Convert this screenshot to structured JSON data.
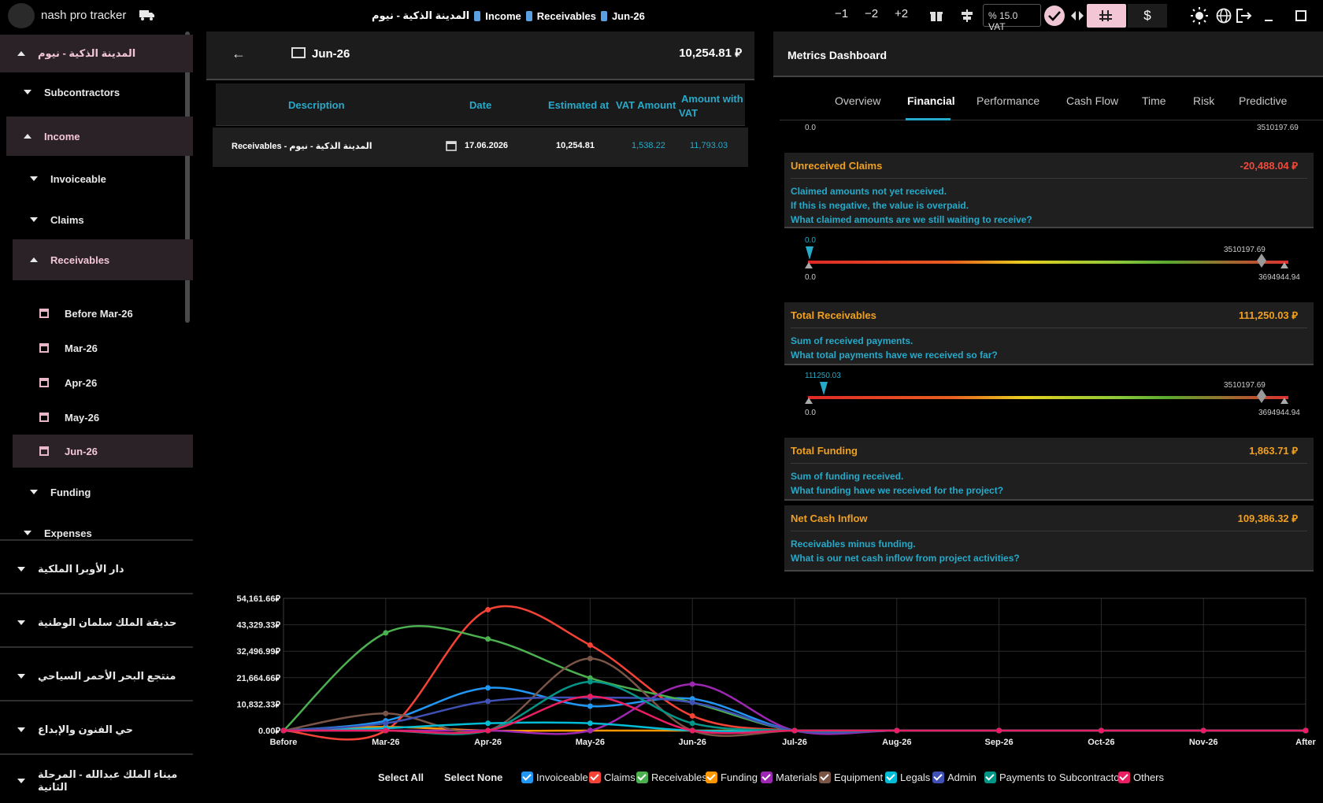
{
  "app": {
    "title": "nash pro tracker"
  },
  "breadcrumb": [
    "المدينة الذكية - نيوم",
    "Income",
    "Receivables",
    "Jun-26"
  ],
  "toolbar": {
    "minus1": "−1",
    "minus2": "−2",
    "plus2": "+2",
    "vat": "% 15.0  VAT",
    "dollar": "$"
  },
  "sidebar": {
    "project": "المدينة الذكية - نيوم",
    "items": [
      {
        "label": "Subcontractors"
      },
      {
        "label": "Income"
      },
      {
        "label": "Invoiceable"
      },
      {
        "label": "Claims"
      },
      {
        "label": "Receivables"
      },
      {
        "label": "Before Mar-26"
      },
      {
        "label": "Mar-26"
      },
      {
        "label": "Apr-26"
      },
      {
        "label": "May-26"
      },
      {
        "label": "Jun-26"
      },
      {
        "label": "Funding"
      },
      {
        "label": "Expenses"
      }
    ],
    "projects": [
      "دار الأوبرا الملكية",
      "حديقة الملك سلمان الوطنية",
      "منتجع البحر الأحمر السياحي",
      "حي الفنون والإبداع",
      "ميناء الملك عبدالله - المرحلة الثانية"
    ]
  },
  "period": {
    "title": "Jun-26",
    "total": "10,254.81 ⃁"
  },
  "table": {
    "headers": [
      "Description",
      "Date",
      "Estimated at",
      "VAT Amount",
      "Amount with",
      "VAT"
    ],
    "row": {
      "description": "Receivables - المدينة الذكية - نيوم",
      "date": "17.06.2026",
      "estimated": "10,254.81",
      "vat": "1,538.22",
      "amount": "11,793.03"
    }
  },
  "metrics": {
    "title": "Metrics Dashboard",
    "tabs": [
      "Overview",
      "Financial",
      "Performance",
      "Cash Flow",
      "Time",
      "Risk",
      "Predictive"
    ],
    "top_labels": {
      "left": "0.0",
      "right": "3510197.69"
    },
    "cards": [
      {
        "title": "Unreceived Claims",
        "value": "-20,488.04 ⃁",
        "lines": [
          "Claimed amounts not yet received.",
          "If this is negative, the value is overpaid.",
          "What claimed amounts are we still waiting to receive?"
        ],
        "gauge": {
          "marker": "0.0",
          "mid": "3510197.69",
          "min": "0.0",
          "max": "3694944.94"
        }
      },
      {
        "title": "Total Receivables",
        "value": "111,250.03 ⃁",
        "lines": [
          "Sum of received payments.",
          "What total payments have we received so far?"
        ],
        "gauge": {
          "marker": "111250.03",
          "mid": "3510197.69",
          "min": "0.0",
          "max": "3694944.94"
        }
      },
      {
        "title": "Total Funding",
        "value": "1,863.71 ⃁",
        "lines": [
          "Sum of funding received.",
          "What funding have we received for the project?"
        ]
      },
      {
        "title": "Net Cash Inflow",
        "value": "109,386.32 ⃁",
        "lines": [
          "Receivables minus funding.",
          "What is our net cash inflow from project activities?"
        ]
      }
    ]
  },
  "legend": {
    "select_all": "Select All",
    "select_none": "Select None",
    "items": [
      {
        "name": "Invoiceable",
        "color": "#2196f3"
      },
      {
        "name": "Claims",
        "color": "#f44336"
      },
      {
        "name": "Receivables",
        "color": "#4caf50"
      },
      {
        "name": "Funding",
        "color": "#ff9800"
      },
      {
        "name": "Materials",
        "color": "#9c27b0"
      },
      {
        "name": "Equipment",
        "color": "#795548"
      },
      {
        "name": "Legals",
        "color": "#00bcd4"
      },
      {
        "name": "Admin",
        "color": "#3f51b5"
      },
      {
        "name": "Payments to Subcontractors",
        "color": "#009688"
      },
      {
        "name": "Others",
        "color": "#e91e63"
      }
    ]
  },
  "chart_data": {
    "type": "line",
    "categories": [
      "Before",
      "Mar-26",
      "Apr-26",
      "May-26",
      "Jun-26",
      "Jul-26",
      "Aug-26",
      "Sep-26",
      "Oct-26",
      "Nov-26",
      "After"
    ],
    "y_ticks": [
      "54,161.66⃁",
      "43,329.33⃁",
      "32,496.99⃁",
      "21,664.66⃁",
      "10,832.33⃁",
      "0.00⃁"
    ],
    "ylim": [
      0,
      54161.66
    ],
    "series": [
      {
        "name": "Invoiceable",
        "color": "#2196f3",
        "values": [
          0,
          4000,
          17500,
          10000,
          13000,
          0,
          0,
          0,
          0,
          0,
          0
        ]
      },
      {
        "name": "Claims",
        "color": "#f44336",
        "values": [
          0,
          0,
          49500,
          35000,
          6000,
          0,
          0,
          0,
          0,
          0,
          0
        ]
      },
      {
        "name": "Receivables",
        "color": "#4caf50",
        "values": [
          0,
          40000,
          37500,
          21500,
          11500,
          0,
          0,
          0,
          0,
          0,
          0
        ]
      },
      {
        "name": "Funding",
        "color": "#ff9800",
        "values": [
          0,
          1500,
          0,
          0,
          0,
          0,
          0,
          0,
          0,
          0,
          0
        ]
      },
      {
        "name": "Materials",
        "color": "#9c27b0",
        "values": [
          0,
          0,
          0,
          0,
          19000,
          0,
          0,
          0,
          0,
          0,
          0
        ]
      },
      {
        "name": "Equipment",
        "color": "#795548",
        "values": [
          0,
          7000,
          0,
          29500,
          0,
          0,
          0,
          0,
          0,
          0,
          0
        ]
      },
      {
        "name": "Legals",
        "color": "#00bcd4",
        "values": [
          0,
          1000,
          3000,
          3000,
          0,
          0,
          0,
          0,
          0,
          0,
          0
        ]
      },
      {
        "name": "Admin",
        "color": "#3f51b5",
        "values": [
          0,
          3000,
          12000,
          13500,
          11500,
          0,
          0,
          0,
          0,
          0,
          0
        ]
      },
      {
        "name": "Payments to Subcontractors",
        "color": "#009688",
        "values": [
          0,
          0,
          0,
          20000,
          3000,
          0,
          0,
          0,
          0,
          0,
          0
        ]
      },
      {
        "name": "Others",
        "color": "#e91e63",
        "values": [
          0,
          0,
          0,
          14000,
          0,
          0,
          0,
          0,
          0,
          0,
          0
        ]
      }
    ]
  }
}
